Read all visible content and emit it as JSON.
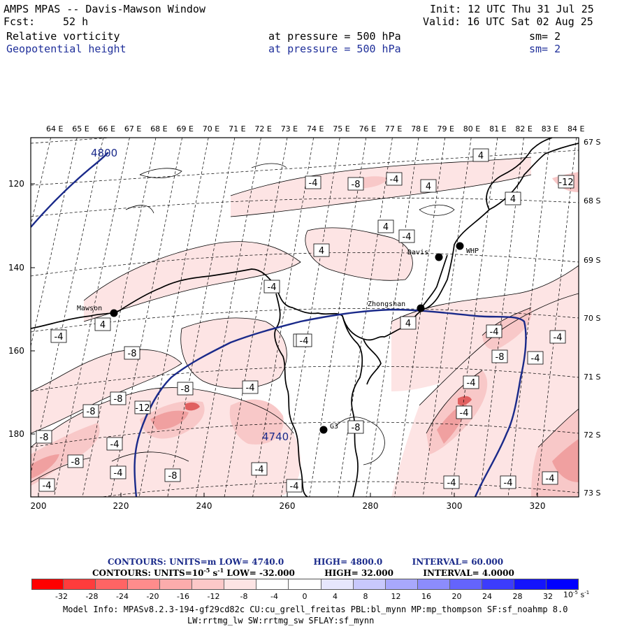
{
  "header": {
    "title": "AMPS MPAS -- Davis-Mawson Window",
    "init": "Init: 12 UTC Thu 31 Jul 25",
    "fcst_label": "Fcst:",
    "fcst_value": "52 h",
    "valid": "Valid: 16 UTC Sat 02 Aug 25",
    "field1": {
      "name": "Relative vorticity",
      "pressure": "at pressure =  500 hPa",
      "sm": "sm= 2"
    },
    "field2": {
      "name": "Geopotential height",
      "pressure": "at pressure =  500 hPa",
      "sm": "sm= 2"
    }
  },
  "colors": {
    "pink_light": "#fde4e4",
    "pink_mid": "#f8c8c8",
    "pink_dark": "#f0a0a0",
    "red_dark": "#e06060",
    "height_contour": "#1a2a8a",
    "coast": "#000000"
  },
  "lon_labels": [
    "64 E",
    "65 E",
    "66 E",
    "67 E",
    "68 E",
    "69 E",
    "70 E",
    "71 E",
    "72 E",
    "73 E",
    "74 E",
    "75 E",
    "76 E",
    "77 E",
    "78 E",
    "79 E",
    "80 E",
    "81 E",
    "82 E",
    "83 E",
    "84 E"
  ],
  "lat_labels": [
    "67 S",
    "68 S",
    "69 S",
    "70 S",
    "71 S",
    "72 S",
    "73 S"
  ],
  "y_ticks": [
    "120",
    "140",
    "160",
    "180"
  ],
  "x_ticks": [
    "200",
    "220",
    "240",
    "260",
    "280",
    "300",
    "320"
  ],
  "stations": [
    {
      "name": "Mawson"
    },
    {
      "name": "Davis"
    },
    {
      "name": "WHP"
    },
    {
      "name": "Zhongshan"
    },
    {
      "name": "G3"
    }
  ],
  "height_labels": [
    "4800",
    "4740"
  ],
  "vort_labels": [
    "-4",
    "-8",
    "-4",
    "4",
    "4",
    "4",
    "4",
    "-4",
    "4",
    "-4",
    "4",
    "-4",
    "-8",
    "-4",
    "4",
    "-4",
    "-4",
    "-4",
    "-8",
    "-4",
    "-4",
    "-8",
    "-8",
    "-12",
    "-8",
    "-8",
    "-4",
    "-8",
    "-4",
    "-8",
    "-4",
    "-4",
    "-4",
    "-4",
    "-4",
    "-4",
    "-4",
    "-8",
    "-12",
    "-4",
    "-8",
    "-4",
    "-4",
    "-8",
    "-8",
    "-12",
    "-4",
    "-4",
    "4",
    "-4"
  ],
  "legend": {
    "line1_prefix": "CONTOURS:  UNITS=m  LOW=  4740.0",
    "line1_high": "HIGH=  4800.0",
    "line1_interval": "INTERVAL=   60.000",
    "line2_prefix": "CONTOURS:  UNITS=10",
    "line2_exp": "-5",
    "line2_unit": " s",
    "line2_unit_exp": "-1",
    "line2_low": "  LOW=  -32.000",
    "line2_high": "HIGH=  32.000",
    "line2_interval": "INTERVAL=   4.0000"
  },
  "colorbar": {
    "colors": [
      "#ff0000",
      "#ff3c3c",
      "#ff6464",
      "#ff8c8c",
      "#fcacac",
      "#fcc8c8",
      "#fde4e4",
      "#ffffff",
      "#ffffff",
      "#e6e6fc",
      "#c8c8fc",
      "#a8a8fc",
      "#8c8cfc",
      "#6464fc",
      "#3c3cfc",
      "#1414fc",
      "#0000ff"
    ],
    "labels": [
      "-32",
      "-28",
      "-24",
      "-20",
      "-16",
      "-12",
      "-8",
      "-4",
      "0",
      "4",
      "8",
      "12",
      "16",
      "20",
      "24",
      "28",
      "32"
    ],
    "unit": "10",
    "unit_exp": "-5",
    "unit_s": " s",
    "unit_s_exp": "-1"
  },
  "footer": {
    "line1": "Model Info: MPASv8.2.3-194-gf29cd82c CU:cu_grell_freitas PBL:bl_mynn MP:mp_thompson SF:sf_noahmp 8.0",
    "line2": "LW:rrtmg_lw SW:rrtmg_sw SFLAY:sf_mynn"
  }
}
